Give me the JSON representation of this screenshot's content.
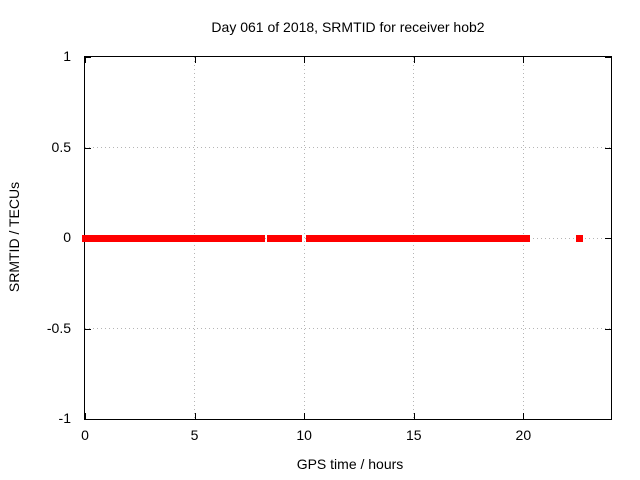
{
  "chart_data": {
    "type": "scatter",
    "title": "Day 061 of 2018, SRMTID for receiver hob2",
    "xlabel": "GPS time / hours",
    "ylabel": "SRMTID / TECUs",
    "xlim": [
      0,
      24
    ],
    "ylim": [
      -1,
      1
    ],
    "xticks": [
      {
        "v": 0,
        "label": "0"
      },
      {
        "v": 5,
        "label": "5"
      },
      {
        "v": 10,
        "label": "10"
      },
      {
        "v": 15,
        "label": "15"
      },
      {
        "v": 20,
        "label": "20"
      }
    ],
    "yticks": [
      {
        "v": -1,
        "label": "-1"
      },
      {
        "v": -0.5,
        "label": "-0.5"
      },
      {
        "v": 0,
        "label": "0"
      },
      {
        "v": 0.5,
        "label": "0.5"
      },
      {
        "v": 1,
        "label": "1"
      }
    ],
    "grid": {
      "on": true,
      "style": "dotted",
      "x_lines": [
        5,
        10,
        15,
        20
      ],
      "y_lines": [
        -0.5,
        0,
        0.5
      ]
    },
    "legend": "none",
    "series": [
      {
        "name": "SRMTID",
        "marker": "filled-square",
        "marker_color": "#ff0000",
        "marker_size_px": 7,
        "y_value": 0,
        "x_dense_segments_hours": [
          [
            0,
            8.05
          ],
          [
            8.45,
            9.72
          ],
          [
            10.2,
            20.1
          ]
        ],
        "x_isolated_points_hours": [
          22.55
        ]
      }
    ]
  },
  "style_colors": {
    "background": "#ffffff",
    "border": "#000000",
    "grid": "#b5b5b5",
    "text": "#000000",
    "series_red": "#ff0000"
  }
}
